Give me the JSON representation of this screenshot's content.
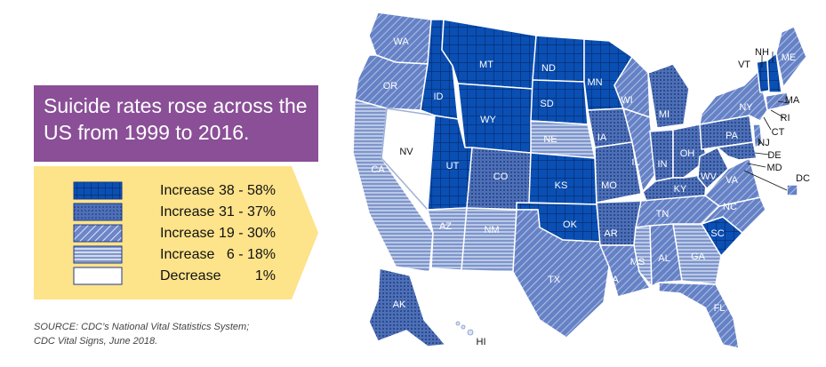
{
  "title": "Suicide rates rose across the US from 1999 to 2016.",
  "legend": [
    {
      "label": "Increase",
      "range": "38 - 58%",
      "pattern": "grid"
    },
    {
      "label": "Increase",
      "range": "31 - 37%",
      "pattern": "dots"
    },
    {
      "label": "Increase",
      "range": "19 - 30%",
      "pattern": "diagonal"
    },
    {
      "label": "Increase",
      "range": "6 - 18%",
      "pattern": "horizontal"
    },
    {
      "label": "Decrease",
      "range": "1%",
      "pattern": "none"
    }
  ],
  "source_line1": "SOURCE: CDC’s National Vital Statistics System;",
  "source_line2": "CDC Vital Signs, June 2018.",
  "colors": {
    "title_bg": "#8a4f97",
    "legend_bg": "#fde38a",
    "map_blue": "#0a4fb4",
    "map_mid": "#5b79c0",
    "map_light": "#7d94cc"
  },
  "states": [
    {
      "code": "WA",
      "tier": "diagonal"
    },
    {
      "code": "OR",
      "tier": "diagonal"
    },
    {
      "code": "CA",
      "tier": "horizontal"
    },
    {
      "code": "NV",
      "tier": "none"
    },
    {
      "code": "ID",
      "tier": "grid"
    },
    {
      "code": "MT",
      "tier": "grid"
    },
    {
      "code": "WY",
      "tier": "grid"
    },
    {
      "code": "UT",
      "tier": "grid"
    },
    {
      "code": "AZ",
      "tier": "horizontal"
    },
    {
      "code": "NM",
      "tier": "horizontal"
    },
    {
      "code": "CO",
      "tier": "dots"
    },
    {
      "code": "ND",
      "tier": "grid"
    },
    {
      "code": "SD",
      "tier": "grid"
    },
    {
      "code": "NE",
      "tier": "horizontal"
    },
    {
      "code": "KS",
      "tier": "grid"
    },
    {
      "code": "OK",
      "tier": "grid"
    },
    {
      "code": "TX",
      "tier": "diagonal"
    },
    {
      "code": "MN",
      "tier": "grid"
    },
    {
      "code": "IA",
      "tier": "dots"
    },
    {
      "code": "MO",
      "tier": "dots"
    },
    {
      "code": "AR",
      "tier": "dots"
    },
    {
      "code": "LA",
      "tier": "diagonal"
    },
    {
      "code": "WI",
      "tier": "diagonal"
    },
    {
      "code": "IL",
      "tier": "diagonal"
    },
    {
      "code": "MI",
      "tier": "dots"
    },
    {
      "code": "IN",
      "tier": "dots"
    },
    {
      "code": "OH",
      "tier": "dots"
    },
    {
      "code": "KY",
      "tier": "dots"
    },
    {
      "code": "TN",
      "tier": "diagonal"
    },
    {
      "code": "MS",
      "tier": "horizontal"
    },
    {
      "code": "AL",
      "tier": "diagonal"
    },
    {
      "code": "GA",
      "tier": "horizontal"
    },
    {
      "code": "FL",
      "tier": "diagonal"
    },
    {
      "code": "SC",
      "tier": "grid"
    },
    {
      "code": "NC",
      "tier": "diagonal"
    },
    {
      "code": "VA",
      "tier": "diagonal"
    },
    {
      "code": "WV",
      "tier": "dots"
    },
    {
      "code": "PA",
      "tier": "dots"
    },
    {
      "code": "NY",
      "tier": "diagonal"
    },
    {
      "code": "VT",
      "tier": "grid"
    },
    {
      "code": "NH",
      "tier": "grid"
    },
    {
      "code": "ME",
      "tier": "diagonal"
    },
    {
      "code": "MA",
      "tier": "diagonal"
    },
    {
      "code": "RI",
      "tier": "diagonal"
    },
    {
      "code": "CT",
      "tier": "diagonal"
    },
    {
      "code": "NJ",
      "tier": "diagonal"
    },
    {
      "code": "DE",
      "tier": "dots"
    },
    {
      "code": "MD",
      "tier": "dots"
    },
    {
      "code": "DC",
      "tier": "diagonal"
    },
    {
      "code": "AK",
      "tier": "dots"
    },
    {
      "code": "HI",
      "tier": "none"
    }
  ]
}
